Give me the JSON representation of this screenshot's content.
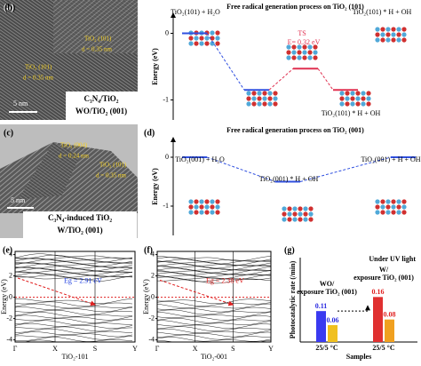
{
  "images": [
    {
      "label": "(a)",
      "annotations": [
        "TiO₂ (101)",
        "d = 0.35 nm",
        "TiO₂ (101)",
        "d = 0.35 nm"
      ],
      "scale_bar": "5 nm",
      "caption": [
        "C₃N₄/TiO₂",
        "WO/TiO₂ (001)"
      ]
    },
    {
      "label": "(c)",
      "annotations": [
        "TiO₂ (004)",
        "d = 0.24 nm",
        "TiO₂ (101)",
        "d = 0.35 nm"
      ],
      "scale_bar": "5 nm",
      "caption": [
        "C₃N₄-induced TiO₂",
        "W/TiO₂ (001)"
      ]
    }
  ],
  "chart_data": [
    {
      "type": "energy",
      "label": "(b)",
      "title": "Free radical generation process on TiO₂ (101)",
      "ylabel": "Energy (eV)",
      "ylim": [
        -1.3,
        0.3
      ],
      "yticks": [
        0,
        -1
      ],
      "levels": [
        0,
        -0.85,
        -0.53,
        -0.85
      ],
      "colors": [
        "#3050e0",
        "#3050e0",
        "#e03050",
        "#e03050"
      ],
      "annotations": [
        "TiO₂(101) + H₂O",
        "TS",
        "E= 0.32 eV",
        "TiO₂(101) * H + OH",
        "TiO₂(101) * H + OH"
      ]
    },
    {
      "type": "energy",
      "label": "(d)",
      "title": "Free radical generation process on TiO₂ (001)",
      "ylabel": "Energy (eV)",
      "ylim": [
        -1.6,
        0.4
      ],
      "yticks": [
        0,
        -1
      ],
      "levels": [
        0,
        -0.5,
        0
      ],
      "colors": [
        "#3050e0",
        "#3050e0",
        "#3050e0"
      ],
      "annotations": [
        "TiO₂(001) + H₂O",
        "TiO₂(001) * H + OH",
        "TiO₂(001) + H + OH"
      ]
    },
    {
      "type": "band",
      "label": "(e)",
      "ylabel": "Energy (eV)",
      "xlabel": "TiO₂-101",
      "ylim": [
        -4.2,
        4.3
      ],
      "yticks": [
        4,
        2,
        0,
        -2,
        -4
      ],
      "kpoints": [
        "Γ",
        "X",
        "S",
        "Y"
      ],
      "gap_label": "Eg = 2.91 eV",
      "gap_color": "#2040e0"
    },
    {
      "type": "band",
      "label": "(f)",
      "ylabel": "Energy (eV)",
      "xlabel": "TiO₂-001",
      "ylim": [
        -4.2,
        4.3
      ],
      "yticks": [
        4,
        2,
        0,
        -2,
        -4
      ],
      "kpoints": [
        "Γ",
        "X",
        "S",
        "Y"
      ],
      "gap_label": "Eg = 2.38 eV",
      "gap_color": "#e02020"
    },
    {
      "type": "bar",
      "label": "(g)",
      "ylabel": "Photocatalytic rate (/min)",
      "xlabel": "Samples",
      "note": "Under UV light",
      "ylim": [
        0,
        0.3
      ],
      "groups": [
        {
          "name": [
            "WO/",
            "exposure TiO₂ (001)"
          ],
          "category": "25/5 °C",
          "values": [
            0.11,
            0.06
          ],
          "colors": [
            "#3a3af0",
            "#f0c020"
          ],
          "label_color": "#2a2ae0"
        },
        {
          "name": [
            "W/",
            "exposure TiO₂ (001)"
          ],
          "category": "25/5 °C",
          "values": [
            0.16,
            0.08
          ],
          "colors": [
            "#e03030",
            "#f0a020"
          ],
          "label_color": "#e02020"
        }
      ]
    }
  ]
}
